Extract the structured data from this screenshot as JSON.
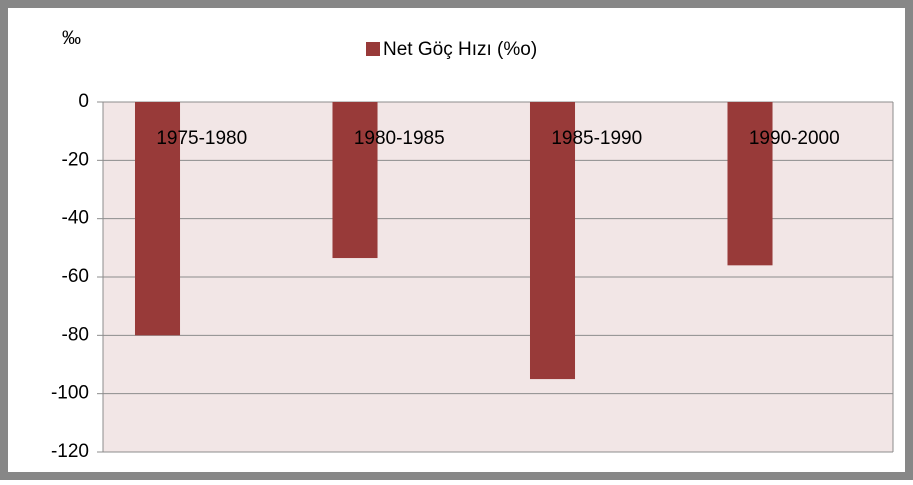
{
  "chart_data": {
    "type": "bar",
    "y_label": "‰",
    "legend": "Net Göç Hızı (%o)",
    "categories": [
      "1975-1980",
      "1980-1985",
      "1985-1990",
      "1990-2000"
    ],
    "values": [
      -80,
      -53.5,
      -95,
      -56
    ],
    "color": "#983a39",
    "ylim": [
      -120,
      0
    ],
    "yticks": [
      0,
      -20,
      -40,
      -60,
      -80,
      -100,
      -120
    ],
    "grid": true
  }
}
